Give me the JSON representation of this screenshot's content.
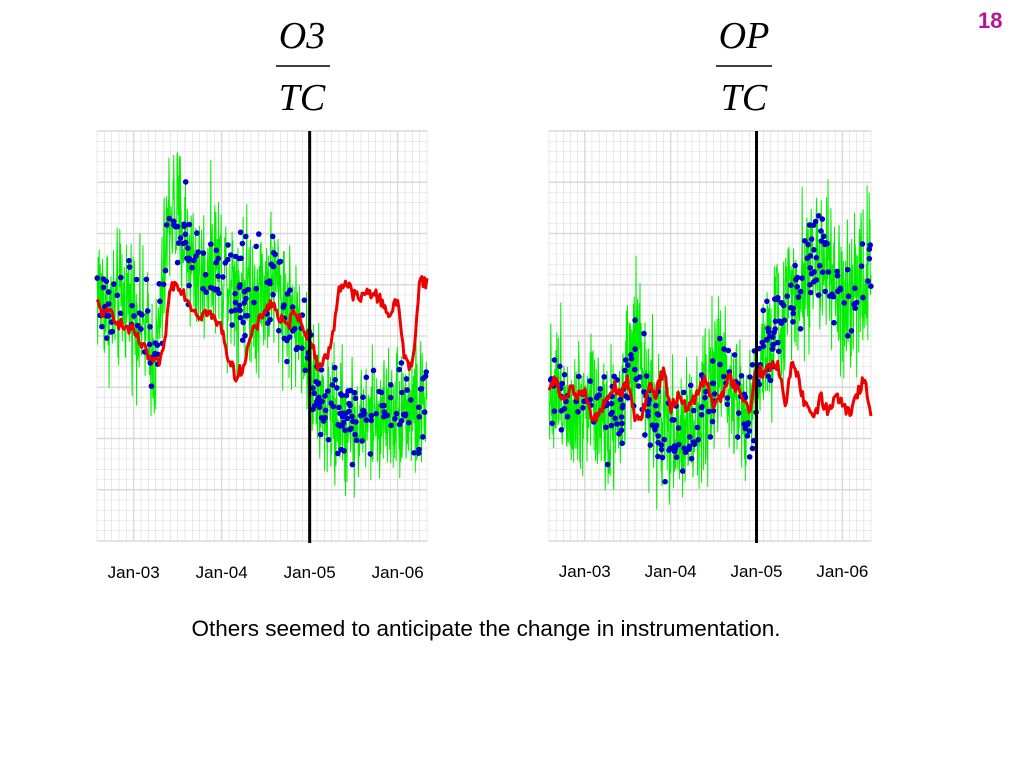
{
  "page_number": "18",
  "caption": "Others seemed to anticipate the change in instrumentation.",
  "colors": {
    "grid": "#d9d9d9",
    "green": "#00ee00",
    "red": "#ee0000",
    "blue": "#0000cc",
    "marker": "#000000",
    "page_number": "#b4149a"
  },
  "chart_data": [
    {
      "type": "line",
      "title": {
        "numerator": "O3",
        "denominator": "TC"
      },
      "x_tick_labels": [
        "Jan-03",
        "Jan-04",
        "Jan-05",
        "Jan-06"
      ],
      "x_ticks": [
        "2003-01",
        "2004-01",
        "2005-01",
        "2006-01"
      ],
      "xlim": [
        "2002-08",
        "2006-05"
      ],
      "ylim": [
        0,
        100
      ],
      "y_ticks_labeled": false,
      "grid": true,
      "vertical_marker": "2005-01",
      "series": [
        {
          "kind": "noisy-band",
          "color": "green",
          "x": [
            "2002-08",
            "2002-10",
            "2002-12",
            "2003-02",
            "2003-04",
            "2003-06",
            "2003-08",
            "2003-10",
            "2003-12",
            "2004-02",
            "2004-04",
            "2004-06",
            "2004-08",
            "2004-10",
            "2004-12",
            "2005-02",
            "2005-04",
            "2005-06",
            "2005-08",
            "2005-10",
            "2005-12",
            "2006-02",
            "2006-04",
            "2006-05"
          ],
          "center": [
            62,
            56,
            60,
            54,
            43,
            82,
            74,
            64,
            70,
            64,
            63,
            60,
            64,
            57,
            50,
            34,
            30,
            29,
            28,
            30,
            32,
            33,
            31,
            34
          ],
          "spread": [
            14,
            14,
            14,
            14,
            13,
            16,
            16,
            14,
            14,
            15,
            15,
            15,
            15,
            14,
            13,
            14,
            14,
            14,
            13,
            13,
            13,
            14,
            14,
            14
          ]
        },
        {
          "kind": "points",
          "color": "blue",
          "x": [
            "2002-08",
            "2002-10",
            "2002-12",
            "2003-02",
            "2003-04",
            "2003-06",
            "2003-08",
            "2003-10",
            "2003-12",
            "2004-02",
            "2004-04",
            "2004-06",
            "2004-08",
            "2004-10",
            "2004-12",
            "2005-02",
            "2005-04",
            "2005-06",
            "2005-08",
            "2005-10",
            "2005-12",
            "2006-02",
            "2006-04",
            "2006-05"
          ],
          "center": [
            62,
            56,
            60,
            54,
            43,
            79,
            72,
            63,
            68,
            63,
            62,
            60,
            63,
            56,
            51,
            35,
            32,
            31,
            30,
            31,
            32,
            33,
            31,
            34
          ],
          "spread": [
            8,
            8,
            8,
            8,
            7,
            10,
            10,
            8,
            8,
            9,
            9,
            9,
            9,
            8,
            8,
            8,
            8,
            8,
            7,
            7,
            7,
            8,
            8,
            8
          ]
        },
        {
          "kind": "line",
          "color": "red",
          "x": [
            "2002-08",
            "2002-09",
            "2002-10",
            "2002-11",
            "2002-12",
            "2003-01",
            "2003-02",
            "2003-03",
            "2003-04",
            "2003-05",
            "2003-06",
            "2003-07",
            "2003-08",
            "2003-09",
            "2003-10",
            "2003-11",
            "2003-12",
            "2004-01",
            "2004-02",
            "2004-03",
            "2004-04",
            "2004-05",
            "2004-06",
            "2004-07",
            "2004-08",
            "2004-09",
            "2004-10",
            "2004-11",
            "2004-12",
            "2005-01",
            "2005-02",
            "2005-03",
            "2005-04",
            "2005-05",
            "2005-06",
            "2005-07",
            "2005-08",
            "2005-09",
            "2005-10",
            "2005-11",
            "2005-12",
            "2006-01",
            "2006-02",
            "2006-03",
            "2006-04",
            "2006-05"
          ],
          "y": [
            58,
            55,
            56,
            53,
            52,
            51,
            48,
            45,
            43,
            45,
            62,
            63,
            60,
            57,
            55,
            56,
            54,
            52,
            44,
            40,
            43,
            50,
            53,
            57,
            58,
            54,
            52,
            57,
            52,
            50,
            43,
            44,
            48,
            62,
            63,
            60,
            59,
            61,
            60,
            58,
            55,
            59,
            44,
            42,
            64,
            63
          ]
        }
      ]
    },
    {
      "type": "line",
      "title": {
        "numerator": "OP",
        "denominator": "TC"
      },
      "x_tick_labels": [
        "Jan-03",
        "Jan-04",
        "Jan-05",
        "Jan-06"
      ],
      "x_ticks": [
        "2003-01",
        "2004-01",
        "2005-01",
        "2006-01"
      ],
      "xlim": [
        "2002-08",
        "2006-05"
      ],
      "ylim": [
        0,
        100
      ],
      "y_ticks_labeled": false,
      "grid": true,
      "vertical_marker": "2005-01",
      "series": [
        {
          "kind": "noisy-band",
          "color": "green",
          "x": [
            "2002-08",
            "2002-10",
            "2002-12",
            "2003-02",
            "2003-04",
            "2003-06",
            "2003-08",
            "2003-10",
            "2003-12",
            "2004-02",
            "2004-04",
            "2004-06",
            "2004-08",
            "2004-10",
            "2004-12",
            "2005-02",
            "2005-04",
            "2005-06",
            "2005-08",
            "2005-10",
            "2005-12",
            "2006-02",
            "2006-04",
            "2006-05"
          ],
          "center": [
            38,
            36,
            33,
            36,
            30,
            32,
            46,
            34,
            26,
            25,
            28,
            36,
            42,
            38,
            30,
            45,
            52,
            62,
            66,
            70,
            60,
            55,
            66,
            68
          ],
          "spread": [
            14,
            14,
            15,
            15,
            15,
            15,
            16,
            15,
            15,
            15,
            15,
            15,
            15,
            15,
            14,
            14,
            14,
            15,
            15,
            15,
            15,
            15,
            15,
            15
          ]
        },
        {
          "kind": "points",
          "color": "blue",
          "x": [
            "2002-08",
            "2002-10",
            "2002-12",
            "2003-02",
            "2003-04",
            "2003-06",
            "2003-08",
            "2003-10",
            "2003-12",
            "2004-02",
            "2004-04",
            "2004-06",
            "2004-08",
            "2004-10",
            "2004-12",
            "2005-02",
            "2005-04",
            "2005-06",
            "2005-08",
            "2005-10",
            "2005-12",
            "2006-02",
            "2006-04",
            "2006-05"
          ],
          "center": [
            38,
            36,
            33,
            36,
            30,
            32,
            45,
            34,
            26,
            25,
            28,
            36,
            42,
            38,
            31,
            45,
            52,
            62,
            66,
            69,
            61,
            56,
            66,
            67
          ],
          "spread": [
            8,
            8,
            8,
            8,
            8,
            8,
            9,
            8,
            8,
            8,
            8,
            8,
            8,
            8,
            8,
            8,
            8,
            8,
            8,
            8,
            8,
            8,
            8,
            8
          ]
        },
        {
          "kind": "line",
          "color": "red",
          "x": [
            "2002-08",
            "2002-09",
            "2002-10",
            "2002-11",
            "2002-12",
            "2003-01",
            "2003-02",
            "2003-03",
            "2003-04",
            "2003-05",
            "2003-06",
            "2003-07",
            "2003-08",
            "2003-09",
            "2003-10",
            "2003-11",
            "2003-12",
            "2004-01",
            "2004-02",
            "2004-03",
            "2004-04",
            "2004-05",
            "2004-06",
            "2004-07",
            "2004-08",
            "2004-09",
            "2004-10",
            "2004-11",
            "2004-12",
            "2005-01",
            "2005-02",
            "2005-03",
            "2005-04",
            "2005-05",
            "2005-06",
            "2005-07",
            "2005-08",
            "2005-09",
            "2005-10",
            "2005-11",
            "2005-12",
            "2006-01",
            "2006-02",
            "2006-03",
            "2006-04",
            "2006-05"
          ],
          "y": [
            38,
            39,
            34,
            37,
            35,
            38,
            30,
            31,
            35,
            38,
            36,
            39,
            30,
            31,
            38,
            36,
            42,
            32,
            35,
            33,
            34,
            37,
            40,
            32,
            35,
            40,
            38,
            35,
            32,
            42,
            41,
            42,
            43,
            33,
            45,
            38,
            32,
            30,
            35,
            31,
            36,
            33,
            31,
            35,
            40,
            30
          ]
        }
      ]
    }
  ]
}
